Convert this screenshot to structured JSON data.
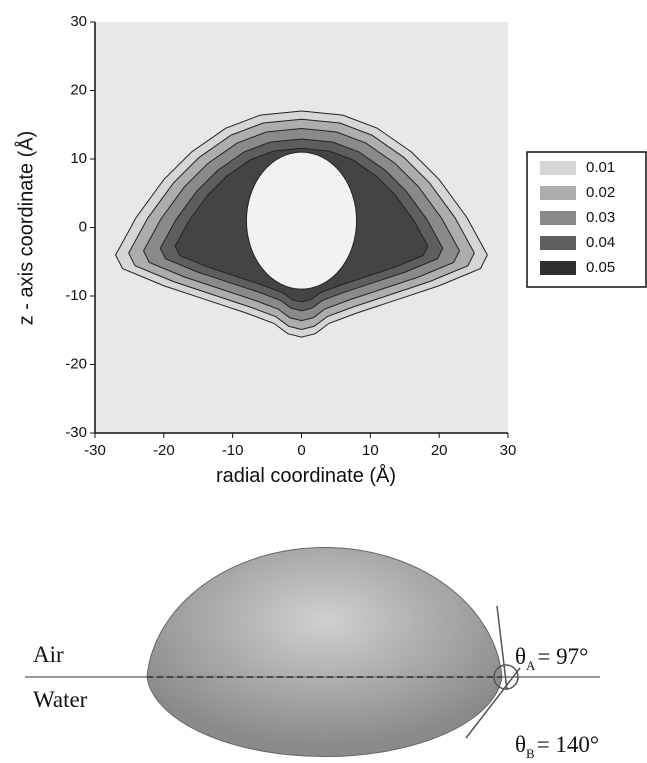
{
  "chart_data": {
    "type": "contour",
    "xlabel": "radial coordinate (Å)",
    "ylabel": "z - axis coordinate (Å)",
    "xlim": [
      -30,
      30
    ],
    "ylim": [
      -30,
      30
    ],
    "xticks": [
      -30,
      -20,
      -10,
      0,
      10,
      20,
      30
    ],
    "yticks": [
      -30,
      -20,
      -10,
      0,
      10,
      20,
      30
    ],
    "levels": [
      0.01,
      0.02,
      0.03,
      0.04,
      0.05
    ],
    "colors": [
      "#d6d6d6",
      "#adadad",
      "#8a8a8a",
      "#5e5e5e",
      "#303030"
    ],
    "background": "#e8e8e8",
    "legend": "right"
  },
  "diagram": {
    "air": "Air",
    "water": "Water",
    "theta_a": {
      "symbol": "θ",
      "subscript": "A",
      "text": "= 97°"
    },
    "theta_b": {
      "symbol": "θ",
      "subscript": "B",
      "text": "= 140°"
    }
  }
}
